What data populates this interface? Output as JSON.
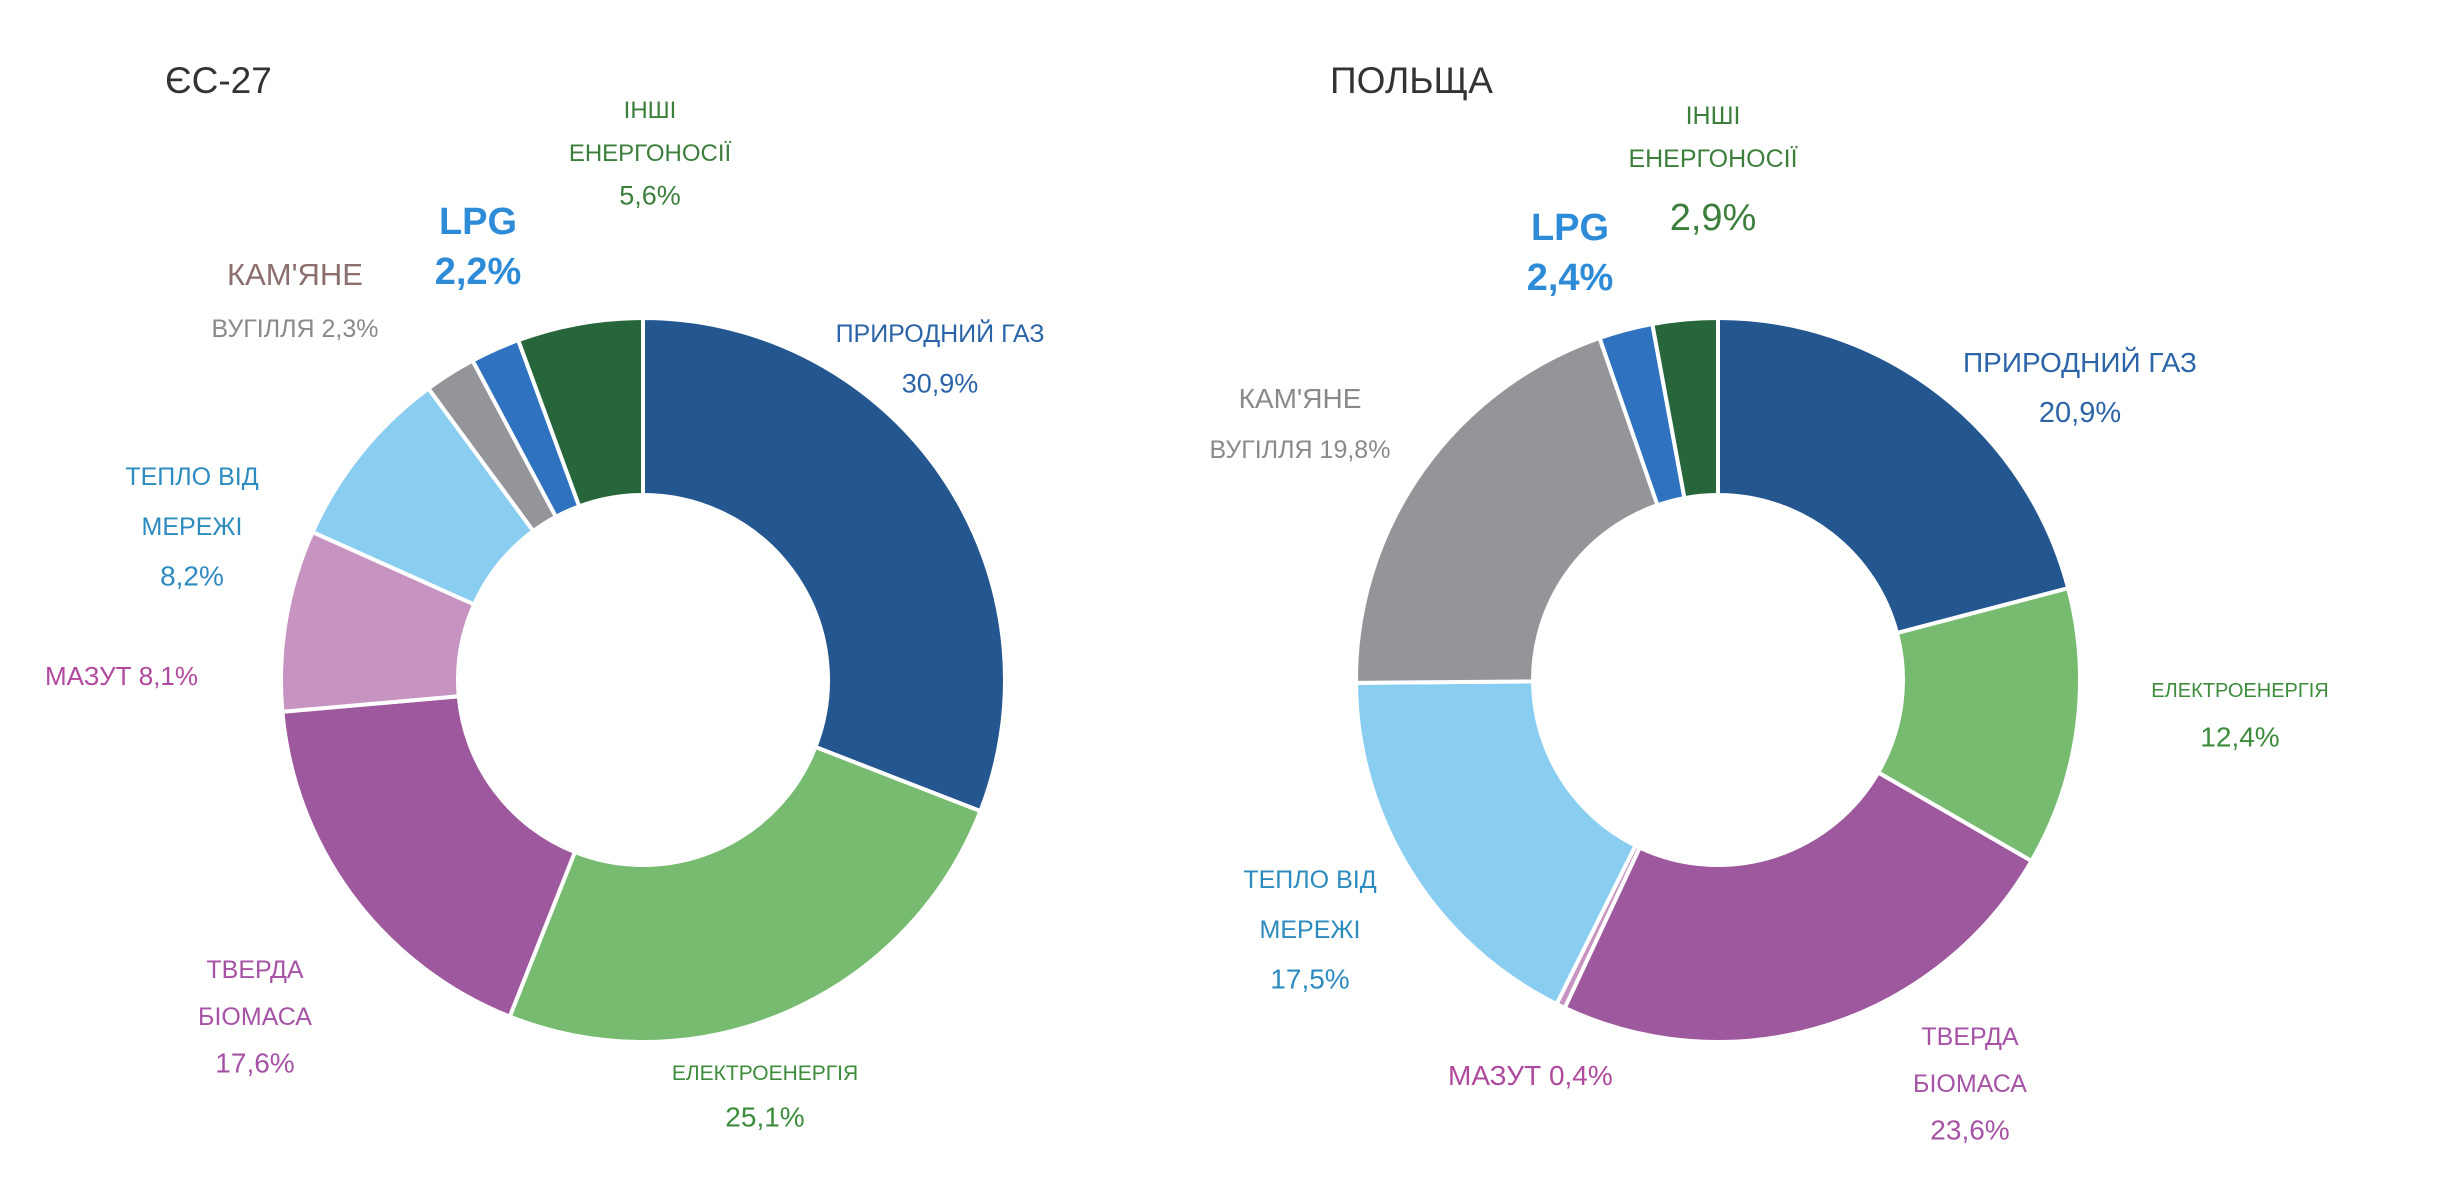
{
  "chart_data": [
    {
      "type": "pie",
      "title": "ЄС-27",
      "slices": [
        {
          "label": [
            "ПРИРОДНИЙ ГАЗ"
          ],
          "value_text": "30,9%",
          "value": 30.9,
          "color": "#24568F",
          "label_color": "#2C64A8"
        },
        {
          "label": [
            "ЕЛЕКТРОЕНЕРГІЯ"
          ],
          "value_text": "25,1%",
          "value": 25.1,
          "color": "#76BB70",
          "label_color": "#3C8C3C"
        },
        {
          "label": [
            "ТВЕРДА",
            "БІОМАСА"
          ],
          "value_text": "17,6%",
          "value": 17.6,
          "color": "#9E599E",
          "label_color": "#A653A6"
        },
        {
          "label": [
            "МАЗУТ 8,1%"
          ],
          "value_text": "",
          "value": 8.1,
          "color": "#C794C1",
          "label_color": "#B04A9E"
        },
        {
          "label": [
            "ТЕПЛО ВІД",
            "МЕРЕЖІ"
          ],
          "value_text": "8,2%",
          "value": 8.2,
          "color": "#89CDF1",
          "label_color": "#2E8BC0"
        },
        {
          "label": [
            "КАМ'ЯНЕ"
          ],
          "sub_label": "ВУГІЛЛЯ 2,3%",
          "value_text": "",
          "value": 2.3,
          "color": "#949599",
          "label_color": "#8C6E6E",
          "sub_label_color": "#8A8A8E"
        },
        {
          "label": [
            "LPG"
          ],
          "value_text": "2,2%",
          "value": 2.2,
          "color": "#2E72C0",
          "label_color": "#2E8BD8"
        },
        {
          "label": [
            "ІНШІ",
            "ЕНЕРГОНОСІЇ"
          ],
          "value_text": "5,6%",
          "value": 5.6,
          "color": "#27663A",
          "label_color": "#3C7F3C"
        }
      ]
    },
    {
      "type": "pie",
      "title": "ПОЛЬЩА",
      "slices": [
        {
          "label": [
            "ПРИРОДНИЙ ГАЗ"
          ],
          "value_text": "20,9%",
          "value": 20.9,
          "color": "#24568F",
          "label_color": "#2C64A8"
        },
        {
          "label": [
            "ЕЛЕКТРОЕНЕРГІЯ"
          ],
          "value_text": "12,4%",
          "value": 12.4,
          "color": "#76BB70",
          "label_color": "#3C8C3C"
        },
        {
          "label": [
            "ТВЕРДА",
            "БІОМАСА"
          ],
          "value_text": "23,6%",
          "value": 23.6,
          "color": "#9E599E",
          "label_color": "#A653A6"
        },
        {
          "label": [
            "МАЗУТ 0,4%"
          ],
          "value_text": "",
          "value": 0.4,
          "color": "#C794C1",
          "label_color": "#B04A9E"
        },
        {
          "label": [
            "ТЕПЛО ВІД",
            "МЕРЕЖІ"
          ],
          "value_text": "17,5%",
          "value": 17.5,
          "color": "#89CDF1",
          "label_color": "#2E8BC0"
        },
        {
          "label": [
            "КАМ'ЯНЕ"
          ],
          "sub_label": "ВУГІЛЛЯ 19,8%",
          "value_text": "",
          "value": 19.8,
          "color": "#949599",
          "label_color": "#8A8A8E",
          "sub_label_color": "#8A8A8E"
        },
        {
          "label": [
            "LPG"
          ],
          "value_text": "2,4%",
          "value": 2.4,
          "color": "#2E72C0",
          "label_color": "#2E8BD8"
        },
        {
          "label": [
            "ІНШІ",
            "ЕНЕРГОНОСІЇ"
          ],
          "value_text": "2,9%",
          "value": 2.9,
          "color": "#27663A",
          "label_color": "#3C7F3C"
        }
      ]
    }
  ]
}
